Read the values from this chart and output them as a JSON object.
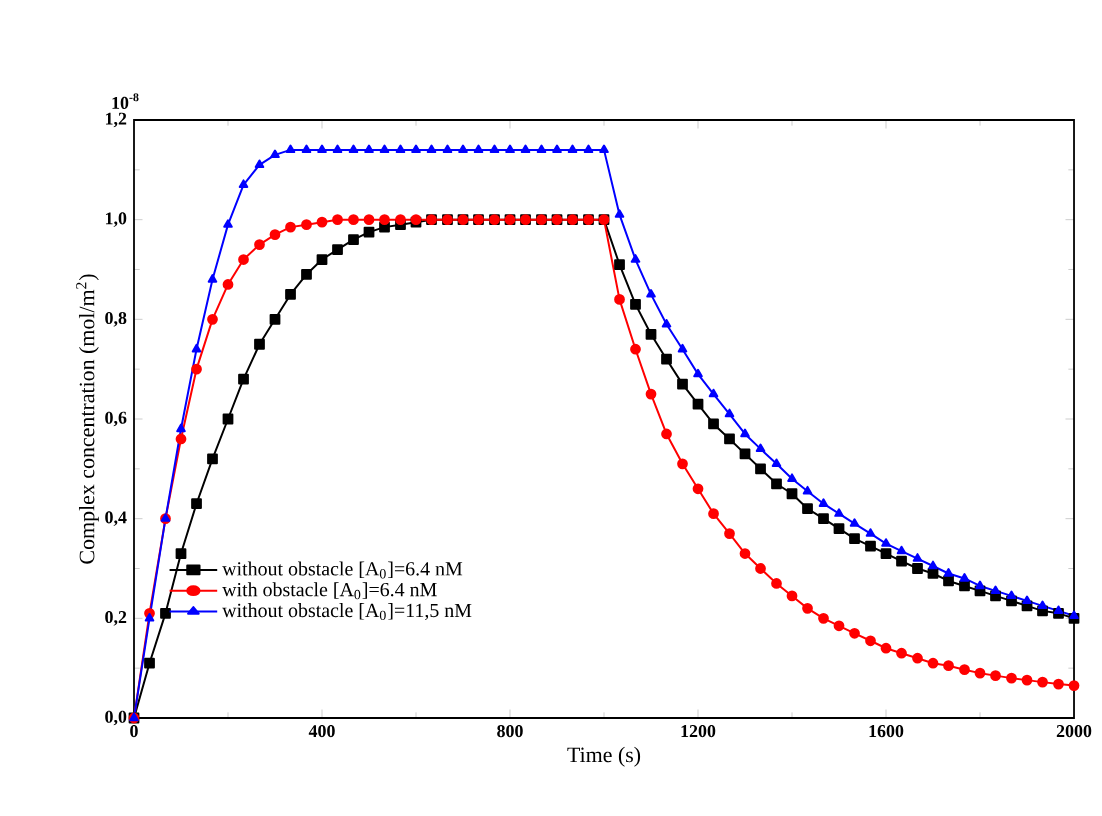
{
  "chart_data": {
    "type": "line",
    "xlabel": "Time (s)",
    "ylabel": "Complex concentration (mol/m$^{2}$)",
    "annotations": [
      "10$^{-8}$"
    ],
    "x": [
      0,
      33,
      67,
      100,
      133,
      167,
      200,
      233,
      267,
      300,
      333,
      367,
      400,
      433,
      467,
      500,
      533,
      567,
      600,
      633,
      667,
      700,
      733,
      767,
      800,
      833,
      867,
      900,
      933,
      967,
      1000,
      1033,
      1067,
      1100,
      1133,
      1167,
      1200,
      1233,
      1267,
      1300,
      1333,
      1367,
      1400,
      1433,
      1467,
      1500,
      1533,
      1567,
      1600,
      1633,
      1667,
      1700,
      1733,
      1767,
      1800,
      1833,
      1867,
      1900,
      1933,
      1967,
      2000
    ],
    "series": [
      {
        "name": "without obstacle [A$_{0}$]=6.4 nM",
        "color": "#000000",
        "marker": "square",
        "values": [
          0,
          0.11,
          0.21,
          0.33,
          0.43,
          0.52,
          0.6,
          0.68,
          0.75,
          0.8,
          0.85,
          0.89,
          0.92,
          0.94,
          0.96,
          0.975,
          0.985,
          0.99,
          0.995,
          1.0,
          1.0,
          1.0,
          1.0,
          1.0,
          1.0,
          1.0,
          1.0,
          1.0,
          1.0,
          1.0,
          1.0,
          0.91,
          0.83,
          0.77,
          0.72,
          0.67,
          0.63,
          0.59,
          0.56,
          0.53,
          0.5,
          0.47,
          0.45,
          0.42,
          0.4,
          0.38,
          0.36,
          0.345,
          0.33,
          0.315,
          0.3,
          0.29,
          0.275,
          0.265,
          0.255,
          0.245,
          0.235,
          0.225,
          0.215,
          0.21,
          0.2
        ]
      },
      {
        "name": "with obstacle [A$_{0}$]=6.4 nM",
        "color": "#ff0000",
        "marker": "circle",
        "values": [
          0,
          0.21,
          0.4,
          0.56,
          0.7,
          0.8,
          0.87,
          0.92,
          0.95,
          0.97,
          0.985,
          0.99,
          0.995,
          1.0,
          1.0,
          1.0,
          1.0,
          1.0,
          1.0,
          1.0,
          1.0,
          1.0,
          1.0,
          1.0,
          1.0,
          1.0,
          1.0,
          1.0,
          1.0,
          1.0,
          1.0,
          0.84,
          0.74,
          0.65,
          0.57,
          0.51,
          0.46,
          0.41,
          0.37,
          0.33,
          0.3,
          0.27,
          0.245,
          0.22,
          0.2,
          0.185,
          0.17,
          0.155,
          0.14,
          0.13,
          0.12,
          0.11,
          0.105,
          0.097,
          0.09,
          0.085,
          0.08,
          0.076,
          0.072,
          0.068,
          0.065
        ]
      },
      {
        "name": "without obstacle [A$_{0}$]=11,5 nM",
        "color": "#0000ff",
        "marker": "triangle",
        "values": [
          0,
          0.2,
          0.4,
          0.58,
          0.74,
          0.88,
          0.99,
          1.07,
          1.11,
          1.13,
          1.14,
          1.14,
          1.14,
          1.14,
          1.14,
          1.14,
          1.14,
          1.14,
          1.14,
          1.14,
          1.14,
          1.14,
          1.14,
          1.14,
          1.14,
          1.14,
          1.14,
          1.14,
          1.14,
          1.14,
          1.14,
          1.01,
          0.92,
          0.85,
          0.79,
          0.74,
          0.69,
          0.65,
          0.61,
          0.57,
          0.54,
          0.51,
          0.48,
          0.455,
          0.43,
          0.41,
          0.39,
          0.37,
          0.35,
          0.335,
          0.32,
          0.305,
          0.29,
          0.28,
          0.265,
          0.255,
          0.245,
          0.235,
          0.225,
          0.215,
          0.205
        ]
      }
    ],
    "xlim": [
      0,
      2000
    ],
    "xticks": [
      0,
      400,
      800,
      1200,
      1600,
      2000
    ],
    "ylim": [
      0,
      1.2
    ],
    "yticks": [
      {
        "value": 0,
        "label": "0,0"
      },
      {
        "value": 0.2,
        "label": "0,2"
      },
      {
        "value": 0.4,
        "label": "0,4"
      },
      {
        "value": 0.6,
        "label": "0,6"
      },
      {
        "value": 0.8,
        "label": "0,8"
      },
      {
        "value": 1.0,
        "label": "1,0"
      },
      {
        "value": 1.2,
        "label": "1,2"
      }
    ],
    "legend": "bottom left",
    "line_style": "solid"
  }
}
